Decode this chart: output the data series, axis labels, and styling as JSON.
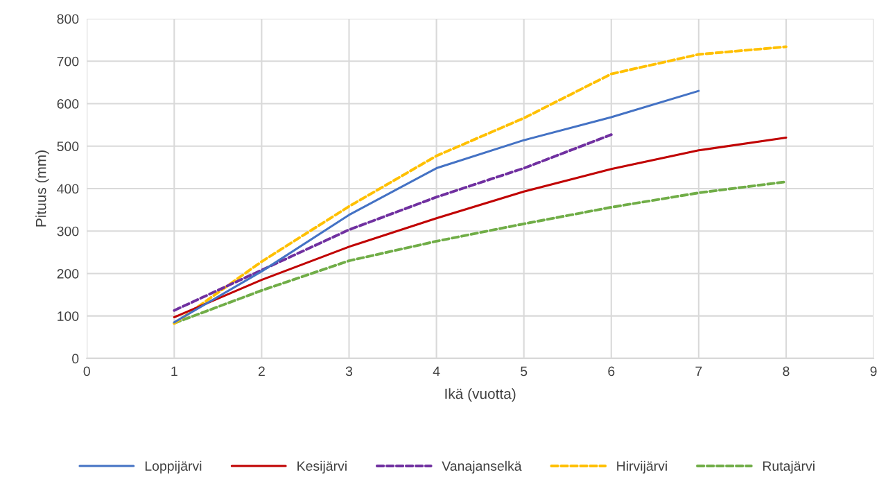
{
  "chart_data": {
    "type": "line",
    "xlabel": "Ikä (vuotta)",
    "ylabel": "Pituus (mm)",
    "xlim": [
      0,
      9
    ],
    "xticks": [
      0,
      1,
      2,
      3,
      4,
      5,
      6,
      7,
      8,
      9
    ],
    "ylim": [
      0,
      800
    ],
    "yticks": [
      0,
      100,
      200,
      300,
      400,
      500,
      600,
      700,
      800
    ],
    "grid": true,
    "legend": "bottom",
    "marker": "none",
    "series": [
      {
        "name": "Loppijärvi",
        "color": "#4472c4",
        "line_style": "solid",
        "x": [
          1,
          2,
          3,
          4,
          5,
          6,
          7
        ],
        "values": [
          85,
          205,
          338,
          448,
          514,
          568,
          630
        ]
      },
      {
        "name": "Kesijärvi",
        "color": "#c00000",
        "line_style": "solid",
        "x": [
          1,
          2,
          3,
          4,
          5,
          6,
          7,
          8
        ],
        "values": [
          97,
          185,
          263,
          330,
          393,
          446,
          490,
          520
        ]
      },
      {
        "name": "Vanajanselkä",
        "color": "#7030a0",
        "line_style": "dashed",
        "x": [
          1,
          2,
          3,
          4,
          5,
          6
        ],
        "values": [
          113,
          208,
          303,
          380,
          448,
          527
        ]
      },
      {
        "name": "Hirvijärvi",
        "color": "#ffc000",
        "line_style": "dashed",
        "x": [
          1,
          2,
          3,
          4,
          5,
          6,
          7,
          8
        ],
        "values": [
          82,
          228,
          358,
          477,
          566,
          670,
          716,
          734
        ]
      },
      {
        "name": "Rutajärvi",
        "color": "#70ad47",
        "line_style": "dashed",
        "x": [
          1,
          2,
          3,
          4,
          5,
          6,
          7,
          8
        ],
        "values": [
          83,
          160,
          230,
          276,
          317,
          356,
          390,
          416
        ]
      }
    ]
  }
}
